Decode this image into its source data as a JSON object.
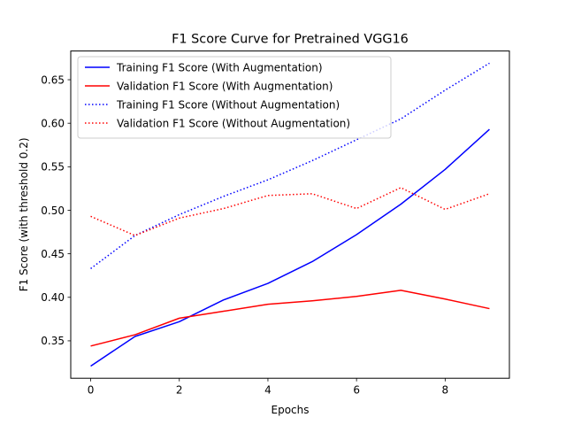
{
  "chart_data": {
    "type": "line",
    "title": "F1 Score Curve for Pretrained VGG16",
    "xlabel": "Epochs",
    "ylabel": "F1 Score (with threshold 0.2)",
    "x": [
      0,
      1,
      2,
      3,
      4,
      5,
      6,
      7,
      8,
      9
    ],
    "xlim": [
      -0.45,
      9.45
    ],
    "ylim": [
      0.307,
      0.683
    ],
    "xticks": [
      0,
      2,
      4,
      6,
      8
    ],
    "yticks": [
      0.35,
      0.4,
      0.45,
      0.5,
      0.55,
      0.6,
      0.65
    ],
    "xtick_labels": [
      "0",
      "2",
      "4",
      "6",
      "8"
    ],
    "ytick_labels": [
      "0.35",
      "0.40",
      "0.45",
      "0.50",
      "0.55",
      "0.60",
      "0.65"
    ],
    "grid": false,
    "legend_position": "upper-left",
    "series": [
      {
        "name": "Training F1 Score (With Augmentation)",
        "color": "#0000ff",
        "style": "solid",
        "values": [
          0.321,
          0.355,
          0.372,
          0.397,
          0.416,
          0.441,
          0.472,
          0.507,
          0.547,
          0.593
        ]
      },
      {
        "name": "Validation F1 Score (With Augmentation)",
        "color": "#ff0000",
        "style": "solid",
        "values": [
          0.344,
          0.357,
          0.376,
          0.384,
          0.392,
          0.396,
          0.401,
          0.408,
          0.398,
          0.387
        ]
      },
      {
        "name": "Training F1 Score (Without Augmentation)",
        "color": "#0000ff",
        "style": "dotted",
        "values": [
          0.433,
          0.471,
          0.495,
          0.516,
          0.535,
          0.557,
          0.581,
          0.605,
          0.638,
          0.669
        ]
      },
      {
        "name": "Validation F1 Score (Without Augmentation)",
        "color": "#ff0000",
        "style": "dotted",
        "values": [
          0.493,
          0.471,
          0.491,
          0.502,
          0.517,
          0.519,
          0.502,
          0.526,
          0.501,
          0.519
        ]
      }
    ]
  }
}
